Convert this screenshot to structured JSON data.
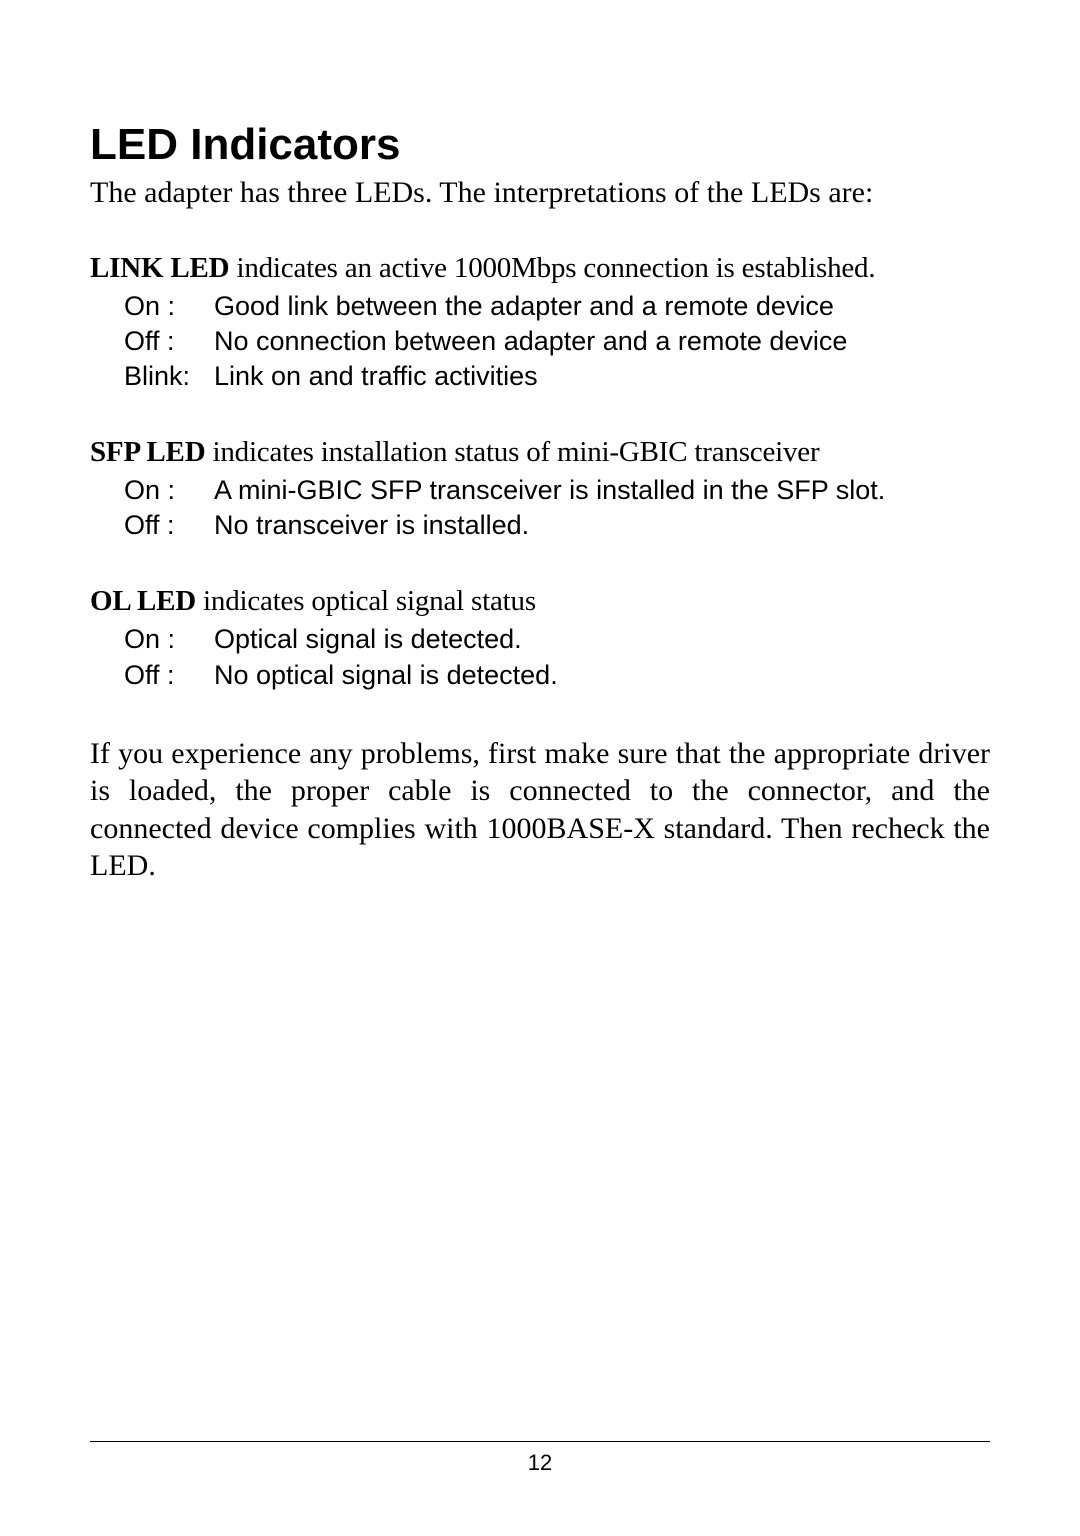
{
  "heading": "LED Indicators",
  "intro": "The adapter has three LEDs. The interpretations of the LEDs are:",
  "sections": [
    {
      "title": "LINK LED",
      "desc": " indicates an active 1000Mbps connection is established.",
      "states": [
        {
          "label": "On :",
          "desc": "Good link between the adapter and a remote device"
        },
        {
          "label": "Off :",
          "desc": "No connection between adapter and a remote device"
        },
        {
          "label": "Blink:",
          "desc": "Link on and traffic activities"
        }
      ]
    },
    {
      "title": "SFP LED",
      "desc": " indicates installation status of mini-GBIC transceiver",
      "states": [
        {
          "label": "On :",
          "desc": "A mini-GBIC SFP transceiver is installed in the SFP slot."
        },
        {
          "label": "Off :",
          "desc": "No transceiver is installed."
        }
      ]
    },
    {
      "title": "OL LED",
      "desc": " indicates optical signal status",
      "states": [
        {
          "label": "On :",
          "desc": "Optical signal is detected."
        },
        {
          "label": "Off :",
          "desc": "No optical signal is detected."
        }
      ]
    }
  ],
  "troubleshoot": "If you experience any problems, first make sure that the appropriate driver is loaded, the proper cable is connected to the connector, and the connected device complies with 1000BASE-X standard. Then recheck the LED.",
  "page_number": "12",
  "colors": {
    "background": "#ffffff",
    "text": "#000000"
  },
  "typography": {
    "heading_font": "Arial",
    "heading_size_pt": 33,
    "body_font": "Times New Roman",
    "body_size_pt": 22,
    "state_font": "Arial",
    "state_size_pt": 20,
    "pagenum_size_pt": 16
  }
}
